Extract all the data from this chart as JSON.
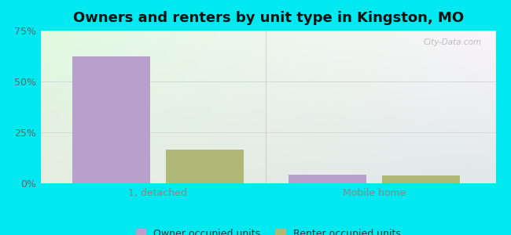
{
  "title": "Owners and renters by unit type in Kingston, MO",
  "categories": [
    "1, detached",
    "Mobile home"
  ],
  "series": [
    {
      "name": "Owner occupied units",
      "values": [
        62.5,
        4.2
      ],
      "color": "#b8a0cc"
    },
    {
      "name": "Renter occupied units",
      "values": [
        16.5,
        4.0
      ],
      "color": "#b0b878"
    }
  ],
  "ylim": [
    0,
    75
  ],
  "yticks": [
    0,
    25,
    50,
    75
  ],
  "ytick_labels": [
    "0%",
    "25%",
    "50%",
    "75%"
  ],
  "background_color": "#00e8f0",
  "title_fontsize": 13,
  "bar_width": 0.18,
  "watermark": "City-Data.com",
  "group_positions": [
    0.22,
    0.72
  ],
  "xlim": [
    -0.05,
    1.0
  ]
}
